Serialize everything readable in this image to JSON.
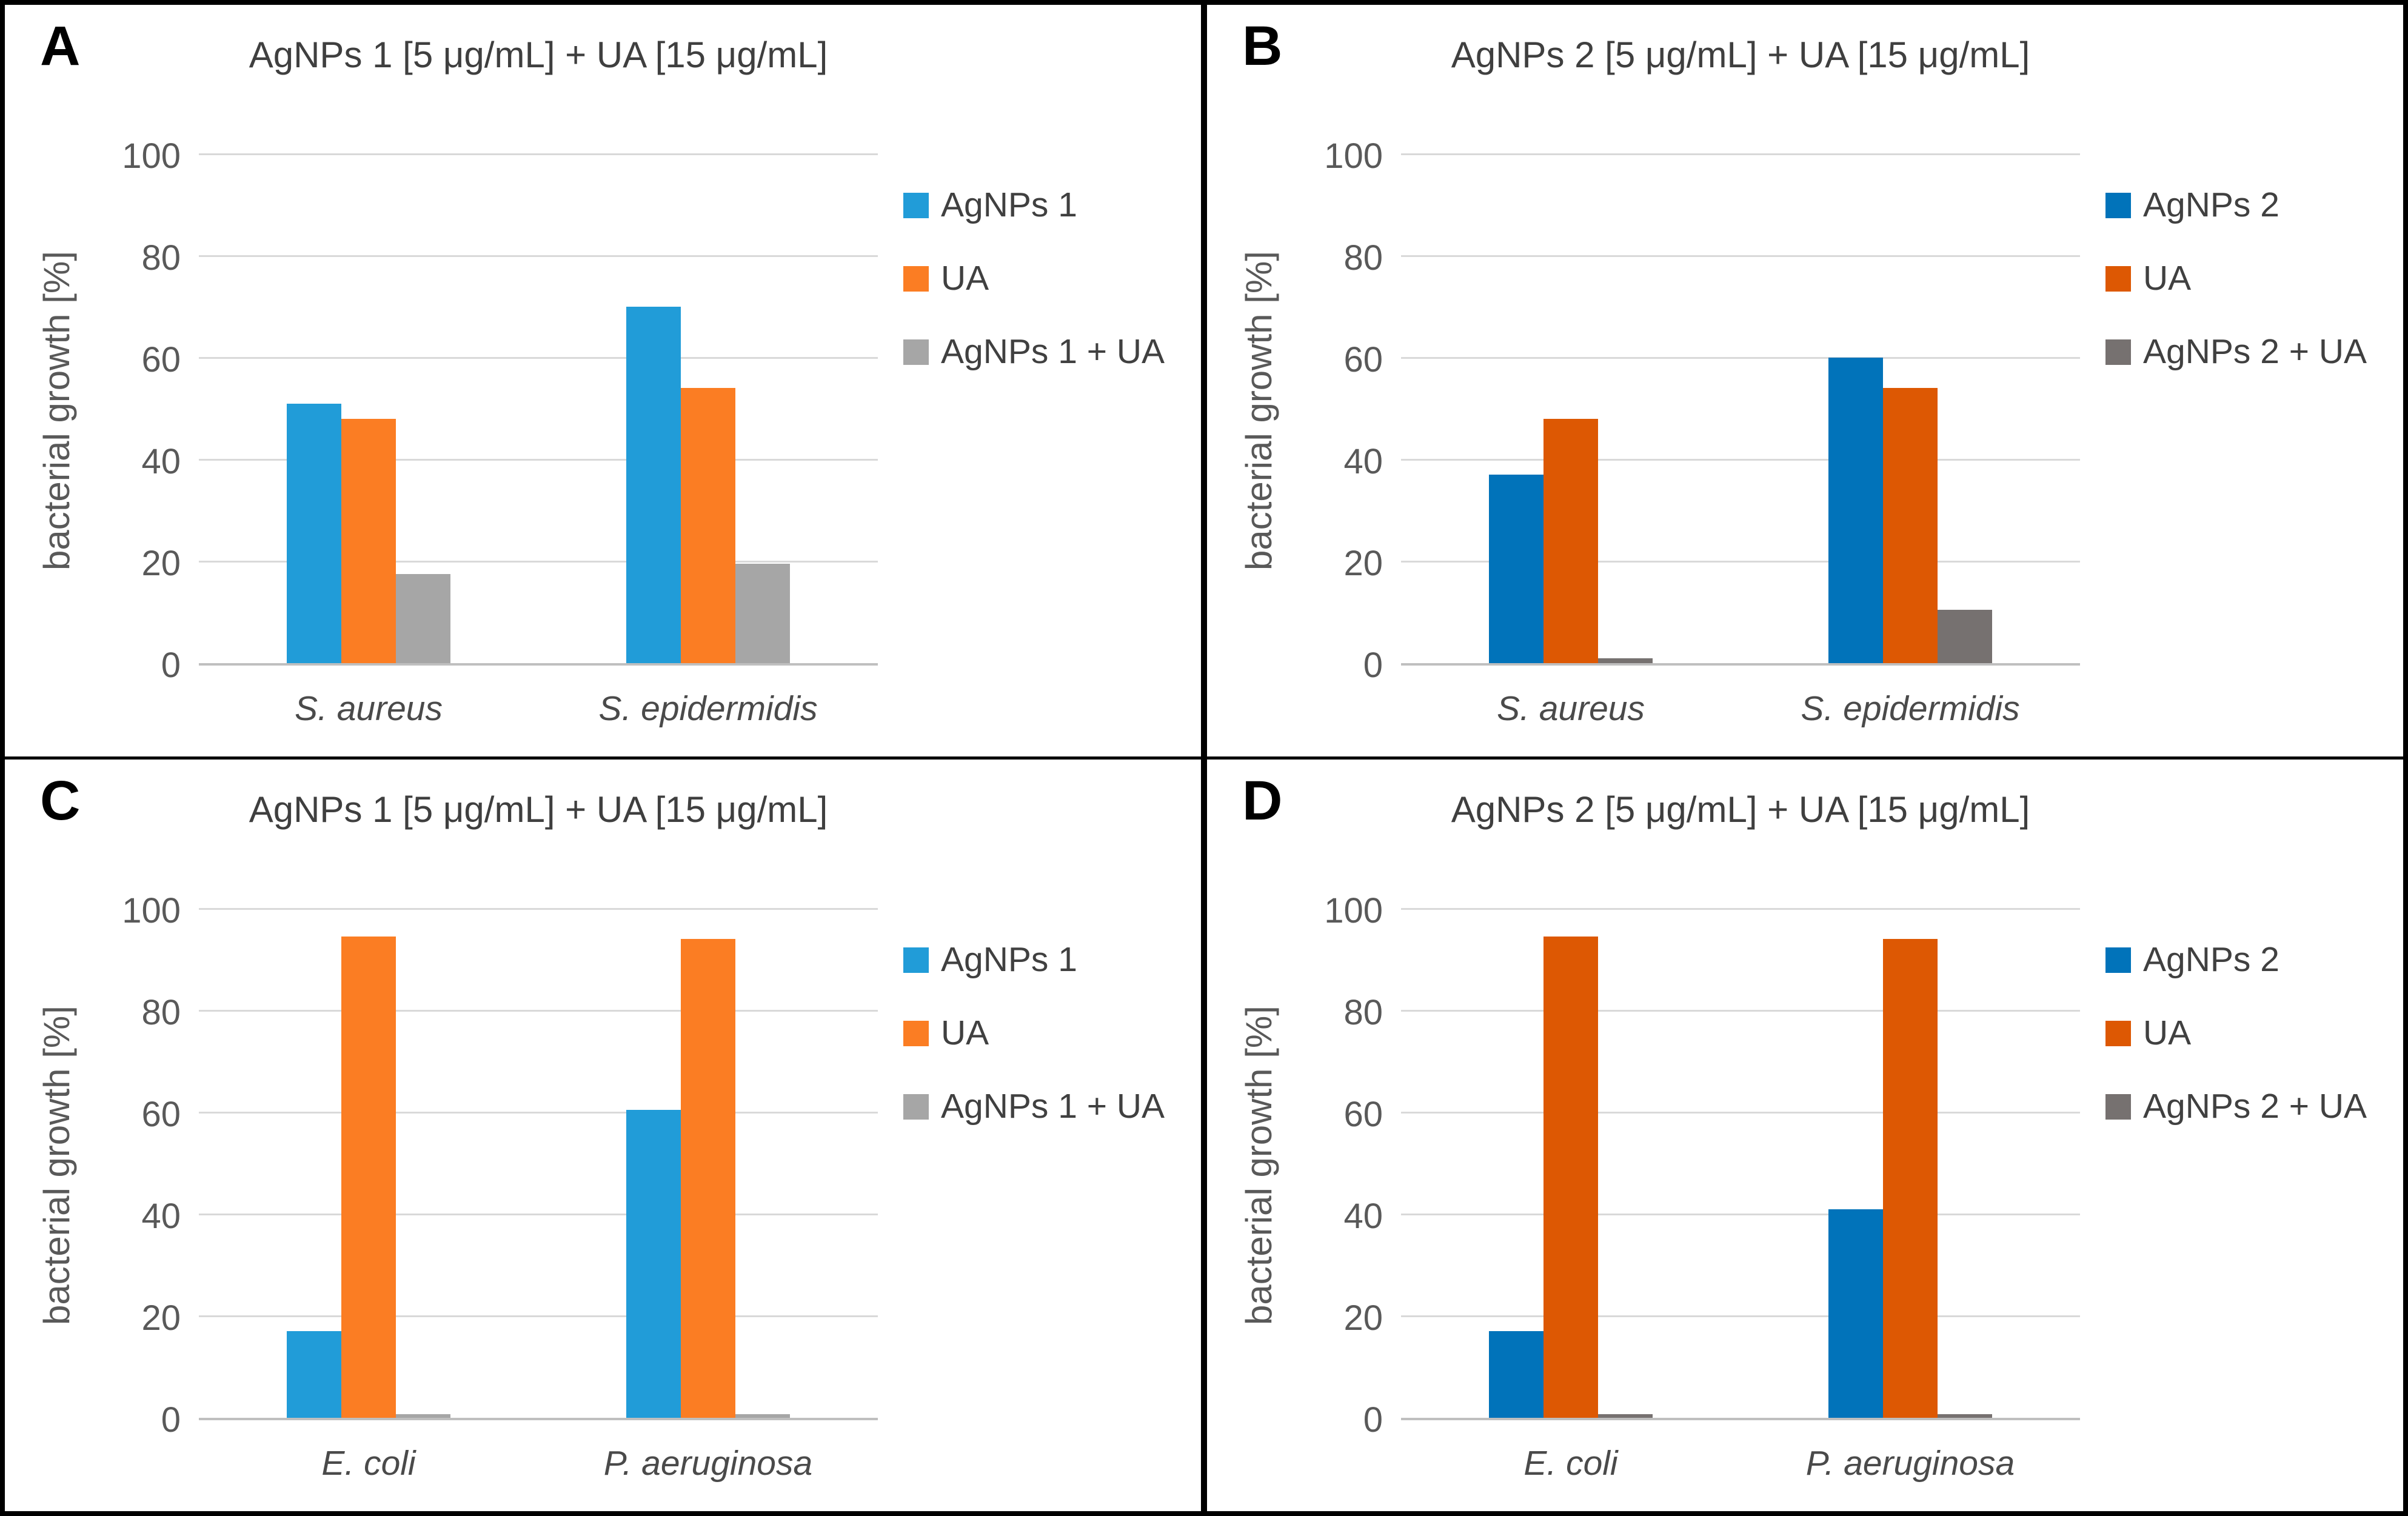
{
  "figure": {
    "kind": "four-panel bar chart figure",
    "panel_letters": [
      "A",
      "B",
      "C",
      "D"
    ],
    "grid_color": "#d9d9d9",
    "axis_line_color": "#bfbfbf",
    "text_color": "#595959",
    "title_color": "#3f3f3f"
  },
  "chart_data": [
    {
      "panel_label": "A",
      "type": "bar",
      "title": "AgNPs 1 [5 μg/mL] + UA [15 μg/mL]",
      "ylabel": "bacterial growth [%]",
      "ylim": [
        0,
        100
      ],
      "yticks": [
        0,
        20,
        40,
        60,
        80,
        100
      ],
      "grid": true,
      "legend_position": "right",
      "categories": [
        "S. aureus",
        "S. epidermidis"
      ],
      "series": [
        {
          "name": "AgNPs 1",
          "color": "#219CD8",
          "values": [
            51,
            70
          ]
        },
        {
          "name": "UA",
          "color": "#FB7D23",
          "values": [
            48,
            54
          ]
        },
        {
          "name": "AgNPs 1 + UA",
          "color": "#A6A6A6",
          "values": [
            17.5,
            19.5
          ]
        }
      ]
    },
    {
      "panel_label": "B",
      "type": "bar",
      "title": "AgNPs 2 [5 μg/mL] + UA [15 μg/mL]",
      "ylabel": "bacterial growth [%]",
      "ylim": [
        0,
        100
      ],
      "yticks": [
        0,
        20,
        40,
        60,
        80,
        100
      ],
      "grid": true,
      "legend_position": "right",
      "categories": [
        "S. aureus",
        "S. epidermidis"
      ],
      "series": [
        {
          "name": "AgNPs 2",
          "color": "#0173BA",
          "values": [
            37,
            60
          ]
        },
        {
          "name": "UA",
          "color": "#DD5803",
          "values": [
            48,
            54
          ]
        },
        {
          "name": "AgNPs 2 + UA",
          "color": "#767170",
          "values": [
            1,
            10.5
          ]
        }
      ]
    },
    {
      "panel_label": "C",
      "type": "bar",
      "title": "AgNPs 1 [5 μg/mL] + UA [15 μg/mL]",
      "ylabel": "bacterial growth [%]",
      "ylim": [
        0,
        100
      ],
      "yticks": [
        0,
        20,
        40,
        60,
        80,
        100
      ],
      "grid": true,
      "legend_position": "right",
      "categories": [
        "E. coli",
        "P. aeruginosa"
      ],
      "series": [
        {
          "name": "AgNPs 1",
          "color": "#219CD8",
          "values": [
            17,
            60.5
          ]
        },
        {
          "name": "UA",
          "color": "#FB7D23",
          "values": [
            94.5,
            94
          ]
        },
        {
          "name": "AgNPs 1 + UA",
          "color": "#A6A6A6",
          "values": [
            0.7,
            0.7
          ]
        }
      ]
    },
    {
      "panel_label": "D",
      "type": "bar",
      "title": "AgNPs 2 [5 μg/mL] + UA [15 μg/mL]",
      "ylabel": "bacterial growth [%]",
      "ylim": [
        0,
        100
      ],
      "yticks": [
        0,
        20,
        40,
        60,
        80,
        100
      ],
      "grid": true,
      "legend_position": "right",
      "categories": [
        "E. coli",
        "P. aeruginosa"
      ],
      "series": [
        {
          "name": "AgNPs 2",
          "color": "#0173BA",
          "values": [
            17,
            41
          ]
        },
        {
          "name": "UA",
          "color": "#DD5803",
          "values": [
            94.5,
            94
          ]
        },
        {
          "name": "AgNPs 2 + UA",
          "color": "#767170",
          "values": [
            0.7,
            0.7
          ]
        }
      ]
    }
  ]
}
